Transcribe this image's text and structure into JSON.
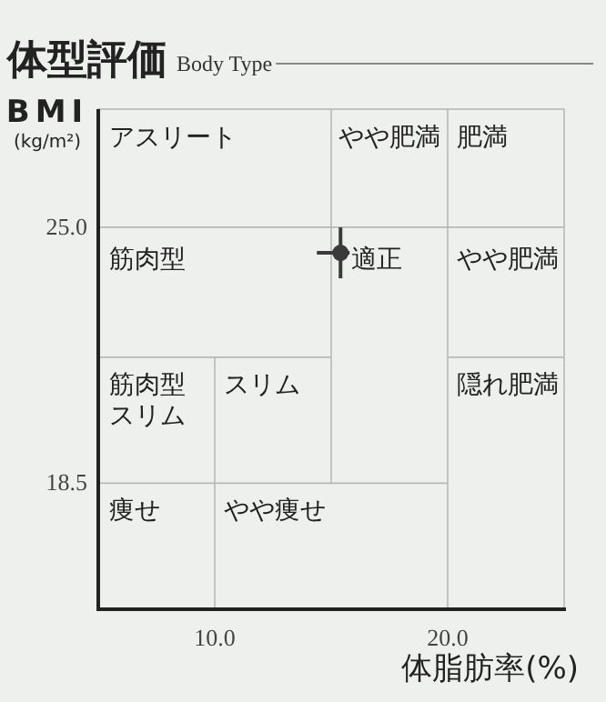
{
  "chart_data": {
    "type": "scatter",
    "title": "体型評価",
    "subtitle": "Body Type",
    "xlabel": "体脂肪率(%)",
    "ylabel": "BMI\n(kg/m²)",
    "xlim": [
      5,
      25
    ],
    "ylim": [
      15.3,
      28
    ],
    "xticks": [
      {
        "value": 10,
        "label": "10.0"
      },
      {
        "value": 20,
        "label": "20.0"
      }
    ],
    "yticks": [
      {
        "value": 18.5,
        "label": "18.5"
      },
      {
        "value": 25,
        "label": "25.0"
      }
    ],
    "marker": "circle",
    "series": [
      {
        "type": "scatter",
        "color": "#3a3a3a",
        "x": [
          15.4
        ],
        "values": [
          24.35
        ]
      },
      {
        "type": "line",
        "marker": "none",
        "color": "#b8b8b8",
        "x": [
          10,
          10
        ],
        "values": [
          15.3,
          21.7
        ]
      },
      {
        "type": "line",
        "marker": "none",
        "color": "#b8b8b8",
        "x": [
          15,
          15
        ],
        "values": [
          18.5,
          28
        ]
      },
      {
        "type": "line",
        "marker": "none",
        "color": "#b8b8b8",
        "x": [
          5,
          15
        ],
        "values": [
          21.7,
          21.7
        ]
      },
      {
        "type": "line",
        "marker": "none",
        "color": "#b8b8b8",
        "x": [
          20,
          25
        ],
        "values": [
          21.7,
          21.7
        ]
      },
      {
        "type": "line",
        "marker": "none",
        "color": "#b8b8b8",
        "x": [
          5,
          20
        ],
        "values": [
          18.5,
          18.5
        ]
      },
      {
        "type": "line",
        "marker": "none",
        "color": "#b8b8b8",
        "x": [
          20,
          20
        ],
        "values": [
          15.3,
          28
        ]
      },
      {
        "type": "line",
        "marker": "none",
        "color": "#b8b8b8",
        "x": [
          5,
          25
        ],
        "values": [
          25,
          25
        ]
      }
    ],
    "annotations": [
      "アスリート",
      "やや肥満",
      "肥満",
      "筋肉型",
      "適正",
      "やや肥満",
      "筋肉型スリム",
      "スリム",
      "隠れ肥満",
      "痩せ",
      "やや痩せ"
    ]
  }
}
